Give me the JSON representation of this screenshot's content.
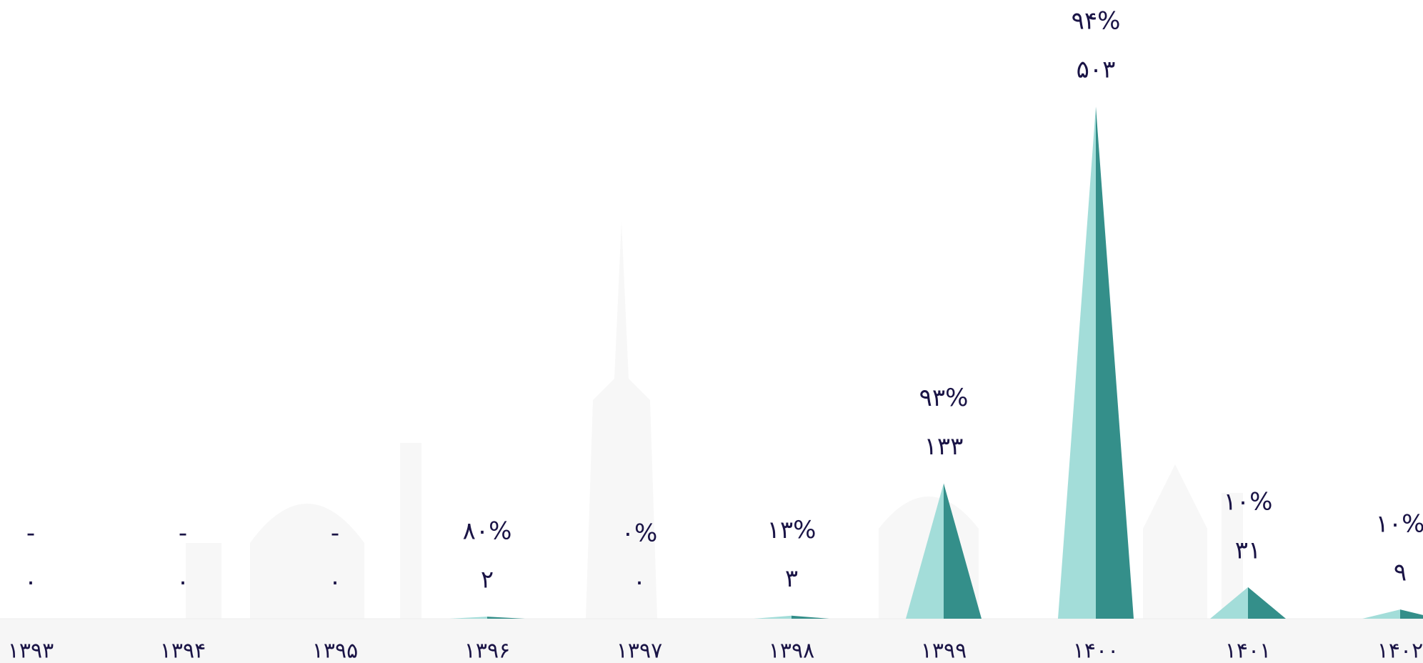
{
  "chart_data": {
    "type": "triangle",
    "categories": [
      "۱۳۹۳",
      "۱۳۹۴",
      "۱۳۹۵",
      "۱۳۹۶",
      "۱۳۹۷",
      "۱۳۹۸",
      "۱۳۹۹",
      "۱۴۰۰",
      "۱۴۰۱",
      "۱۴۰۲"
    ],
    "values": [
      0,
      0,
      0,
      2,
      0,
      3,
      133,
      503,
      31,
      9
    ],
    "value_labels": [
      "۰",
      "۰",
      "۰",
      "۲",
      "۰",
      "۳",
      "۱۳۳",
      "۵۰۳",
      "۳۱",
      "۹"
    ],
    "change": {
      "values": [
        null,
        null,
        null,
        80,
        0,
        13,
        93,
        94,
        10,
        10
      ],
      "value_labels": [
        "-",
        "-",
        "-",
        "۸۰%",
        "۰%",
        "۱۳%",
        "۹۳%",
        "۹۴%",
        "۱۰%",
        "۱۰%"
      ]
    },
    "colors": [
      "#a3ddd9",
      "#348f8a"
    ],
    "ylim": [
      0,
      560
    ]
  }
}
